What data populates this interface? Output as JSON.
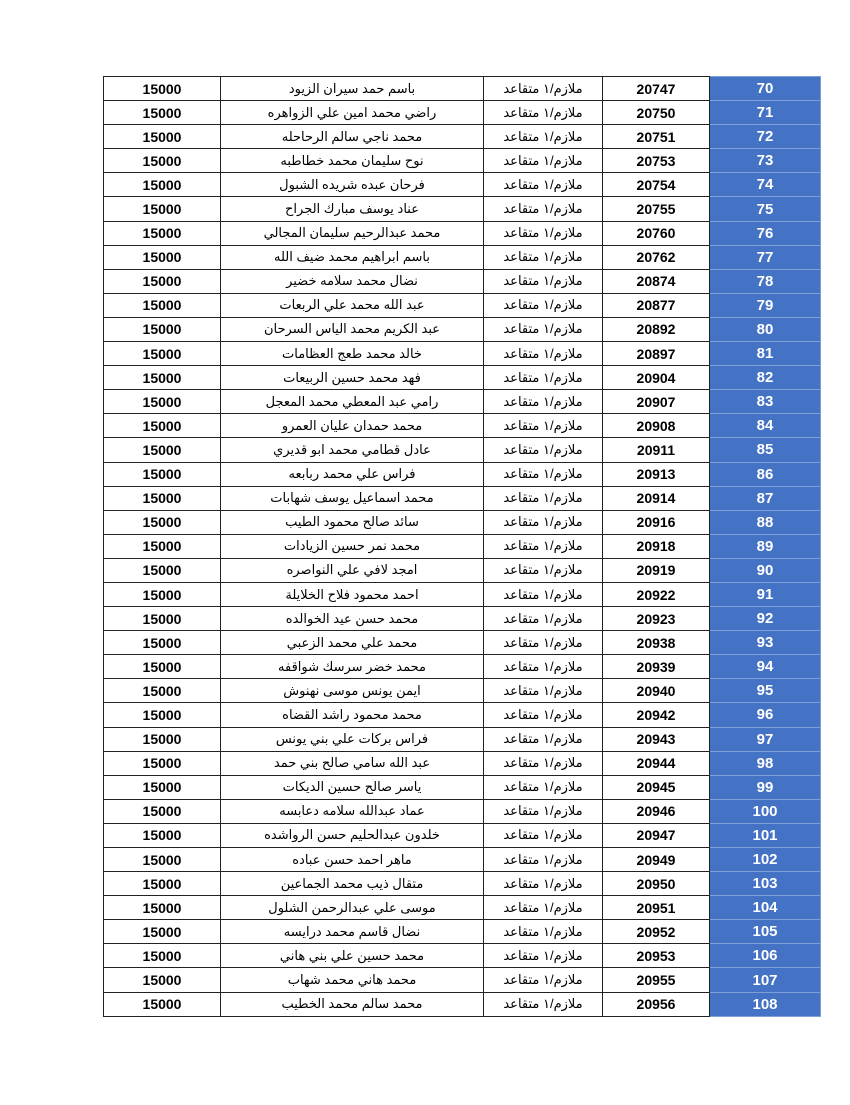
{
  "colors": {
    "index_bg": "#4472c4",
    "index_text": "#ffffff"
  },
  "rows": [
    {
      "index": "70",
      "number": "20747",
      "rank": "ملازم/١ متقاعد",
      "name": "باسم حمد سيران الزيود",
      "amount": "15000"
    },
    {
      "index": "71",
      "number": "20750",
      "rank": "ملازم/١ متقاعد",
      "name": "راضي محمد امين علي الزواهره",
      "amount": "15000"
    },
    {
      "index": "72",
      "number": "20751",
      "rank": "ملازم/١ متقاعد",
      "name": "محمد ناجي سالم الرحاحله",
      "amount": "15000"
    },
    {
      "index": "73",
      "number": "20753",
      "rank": "ملازم/١ متقاعد",
      "name": "نوح سليمان محمد خطاطبه",
      "amount": "15000"
    },
    {
      "index": "74",
      "number": "20754",
      "rank": "ملازم/١ متقاعد",
      "name": "فرحان عبده شريده الشبول",
      "amount": "15000"
    },
    {
      "index": "75",
      "number": "20755",
      "rank": "ملازم/١ متقاعد",
      "name": "عناد يوسف مبارك الجراح",
      "amount": "15000"
    },
    {
      "index": "76",
      "number": "20760",
      "rank": "ملازم/١ متقاعد",
      "name": "محمد عبدالرحيم سليمان المجالي",
      "amount": "15000"
    },
    {
      "index": "77",
      "number": "20762",
      "rank": "ملازم/١ متقاعد",
      "name": "باسم ابراهيم محمد ضيف الله",
      "amount": "15000"
    },
    {
      "index": "78",
      "number": "20874",
      "rank": "ملازم/١ متقاعد",
      "name": "نضال محمد سلامه خضير",
      "amount": "15000"
    },
    {
      "index": "79",
      "number": "20877",
      "rank": "ملازم/١ متقاعد",
      "name": "عبد الله محمد علي الربعات",
      "amount": "15000"
    },
    {
      "index": "80",
      "number": "20892",
      "rank": "ملازم/١ متقاعد",
      "name": "عبد الكريم محمد الياس السرحان",
      "amount": "15000"
    },
    {
      "index": "81",
      "number": "20897",
      "rank": "ملازم/١ متقاعد",
      "name": "خالد محمد طعج العظامات",
      "amount": "15000"
    },
    {
      "index": "82",
      "number": "20904",
      "rank": "ملازم/١ متقاعد",
      "name": "فهد محمد حسين الربيعات",
      "amount": "15000"
    },
    {
      "index": "83",
      "number": "20907",
      "rank": "ملازم/١ متقاعد",
      "name": "رامي عبد المعطي محمد المعجل",
      "amount": "15000"
    },
    {
      "index": "84",
      "number": "20908",
      "rank": "ملازم/١ متقاعد",
      "name": "محمد حمدان عليان العمرو",
      "amount": "15000"
    },
    {
      "index": "85",
      "number": "20911",
      "rank": "ملازم/١ متقاعد",
      "name": "عادل قطامي محمد ابو قديري",
      "amount": "15000"
    },
    {
      "index": "86",
      "number": "20913",
      "rank": "ملازم/١ متقاعد",
      "name": "فراس علي محمد ربابعه",
      "amount": "15000"
    },
    {
      "index": "87",
      "number": "20914",
      "rank": "ملازم/١ متقاعد",
      "name": "محمد اسماعيل يوسف شهابات",
      "amount": "15000"
    },
    {
      "index": "88",
      "number": "20916",
      "rank": "ملازم/١ متقاعد",
      "name": "سائد صالح محمود الطيب",
      "amount": "15000"
    },
    {
      "index": "89",
      "number": "20918",
      "rank": "ملازم/١ متقاعد",
      "name": "محمد نمر حسين الزيادات",
      "amount": "15000"
    },
    {
      "index": "90",
      "number": "20919",
      "rank": "ملازم/١ متقاعد",
      "name": "امجد لافي علي النواصره",
      "amount": "15000"
    },
    {
      "index": "91",
      "number": "20922",
      "rank": "ملازم/١ متقاعد",
      "name": "احمد محمود فلاح الخلايلة",
      "amount": "15000"
    },
    {
      "index": "92",
      "number": "20923",
      "rank": "ملازم/١ متقاعد",
      "name": "محمد حسن عيد  الخوالده",
      "amount": "15000"
    },
    {
      "index": "93",
      "number": "20938",
      "rank": "ملازم/١ متقاعد",
      "name": "محمد علي محمد الزعبي",
      "amount": "15000"
    },
    {
      "index": "94",
      "number": "20939",
      "rank": "ملازم/١ متقاعد",
      "name": "محمد خضر سرسك شواقفه",
      "amount": "15000"
    },
    {
      "index": "95",
      "number": "20940",
      "rank": "ملازم/١ متقاعد",
      "name": "ايمن يونس موسى نهنوش",
      "amount": "15000"
    },
    {
      "index": "96",
      "number": "20942",
      "rank": "ملازم/١ متقاعد",
      "name": "محمد محمود راشد القضاه",
      "amount": "15000"
    },
    {
      "index": "97",
      "number": "20943",
      "rank": "ملازم/١ متقاعد",
      "name": "فراس بركات علي بني يونس",
      "amount": "15000"
    },
    {
      "index": "98",
      "number": "20944",
      "rank": "ملازم/١ متقاعد",
      "name": "عبد الله سامي صالح بني حمد",
      "amount": "15000"
    },
    {
      "index": "99",
      "number": "20945",
      "rank": "ملازم/١ متقاعد",
      "name": "ياسر صالح حسين الديكات",
      "amount": "15000"
    },
    {
      "index": "100",
      "number": "20946",
      "rank": "ملازم/١ متقاعد",
      "name": "عماد عبدالله سلامه دعابسه",
      "amount": "15000"
    },
    {
      "index": "101",
      "number": "20947",
      "rank": "ملازم/١ متقاعد",
      "name": "خلدون عبدالحليم حسن الرواشده",
      "amount": "15000"
    },
    {
      "index": "102",
      "number": "20949",
      "rank": "ملازم/١ متقاعد",
      "name": "ماهر احمد حسن عباده",
      "amount": "15000"
    },
    {
      "index": "103",
      "number": "20950",
      "rank": "ملازم/١ متقاعد",
      "name": "متقال ذيب محمد الجماعين",
      "amount": "15000"
    },
    {
      "index": "104",
      "number": "20951",
      "rank": "ملازم/١ متقاعد",
      "name": "موسى علي عبدالرحمن الشلول",
      "amount": "15000"
    },
    {
      "index": "105",
      "number": "20952",
      "rank": "ملازم/١ متقاعد",
      "name": "نضال قاسم محمد درايسه",
      "amount": "15000"
    },
    {
      "index": "106",
      "number": "20953",
      "rank": "ملازم/١ متقاعد",
      "name": "محمد حسين علي بني هاني",
      "amount": "15000"
    },
    {
      "index": "107",
      "number": "20955",
      "rank": "ملازم/١ متقاعد",
      "name": "محمد هاني محمد شهاب",
      "amount": "15000"
    },
    {
      "index": "108",
      "number": "20956",
      "rank": "ملازم/١ متقاعد",
      "name": "محمد سالم محمد الخطيب",
      "amount": "15000"
    }
  ]
}
